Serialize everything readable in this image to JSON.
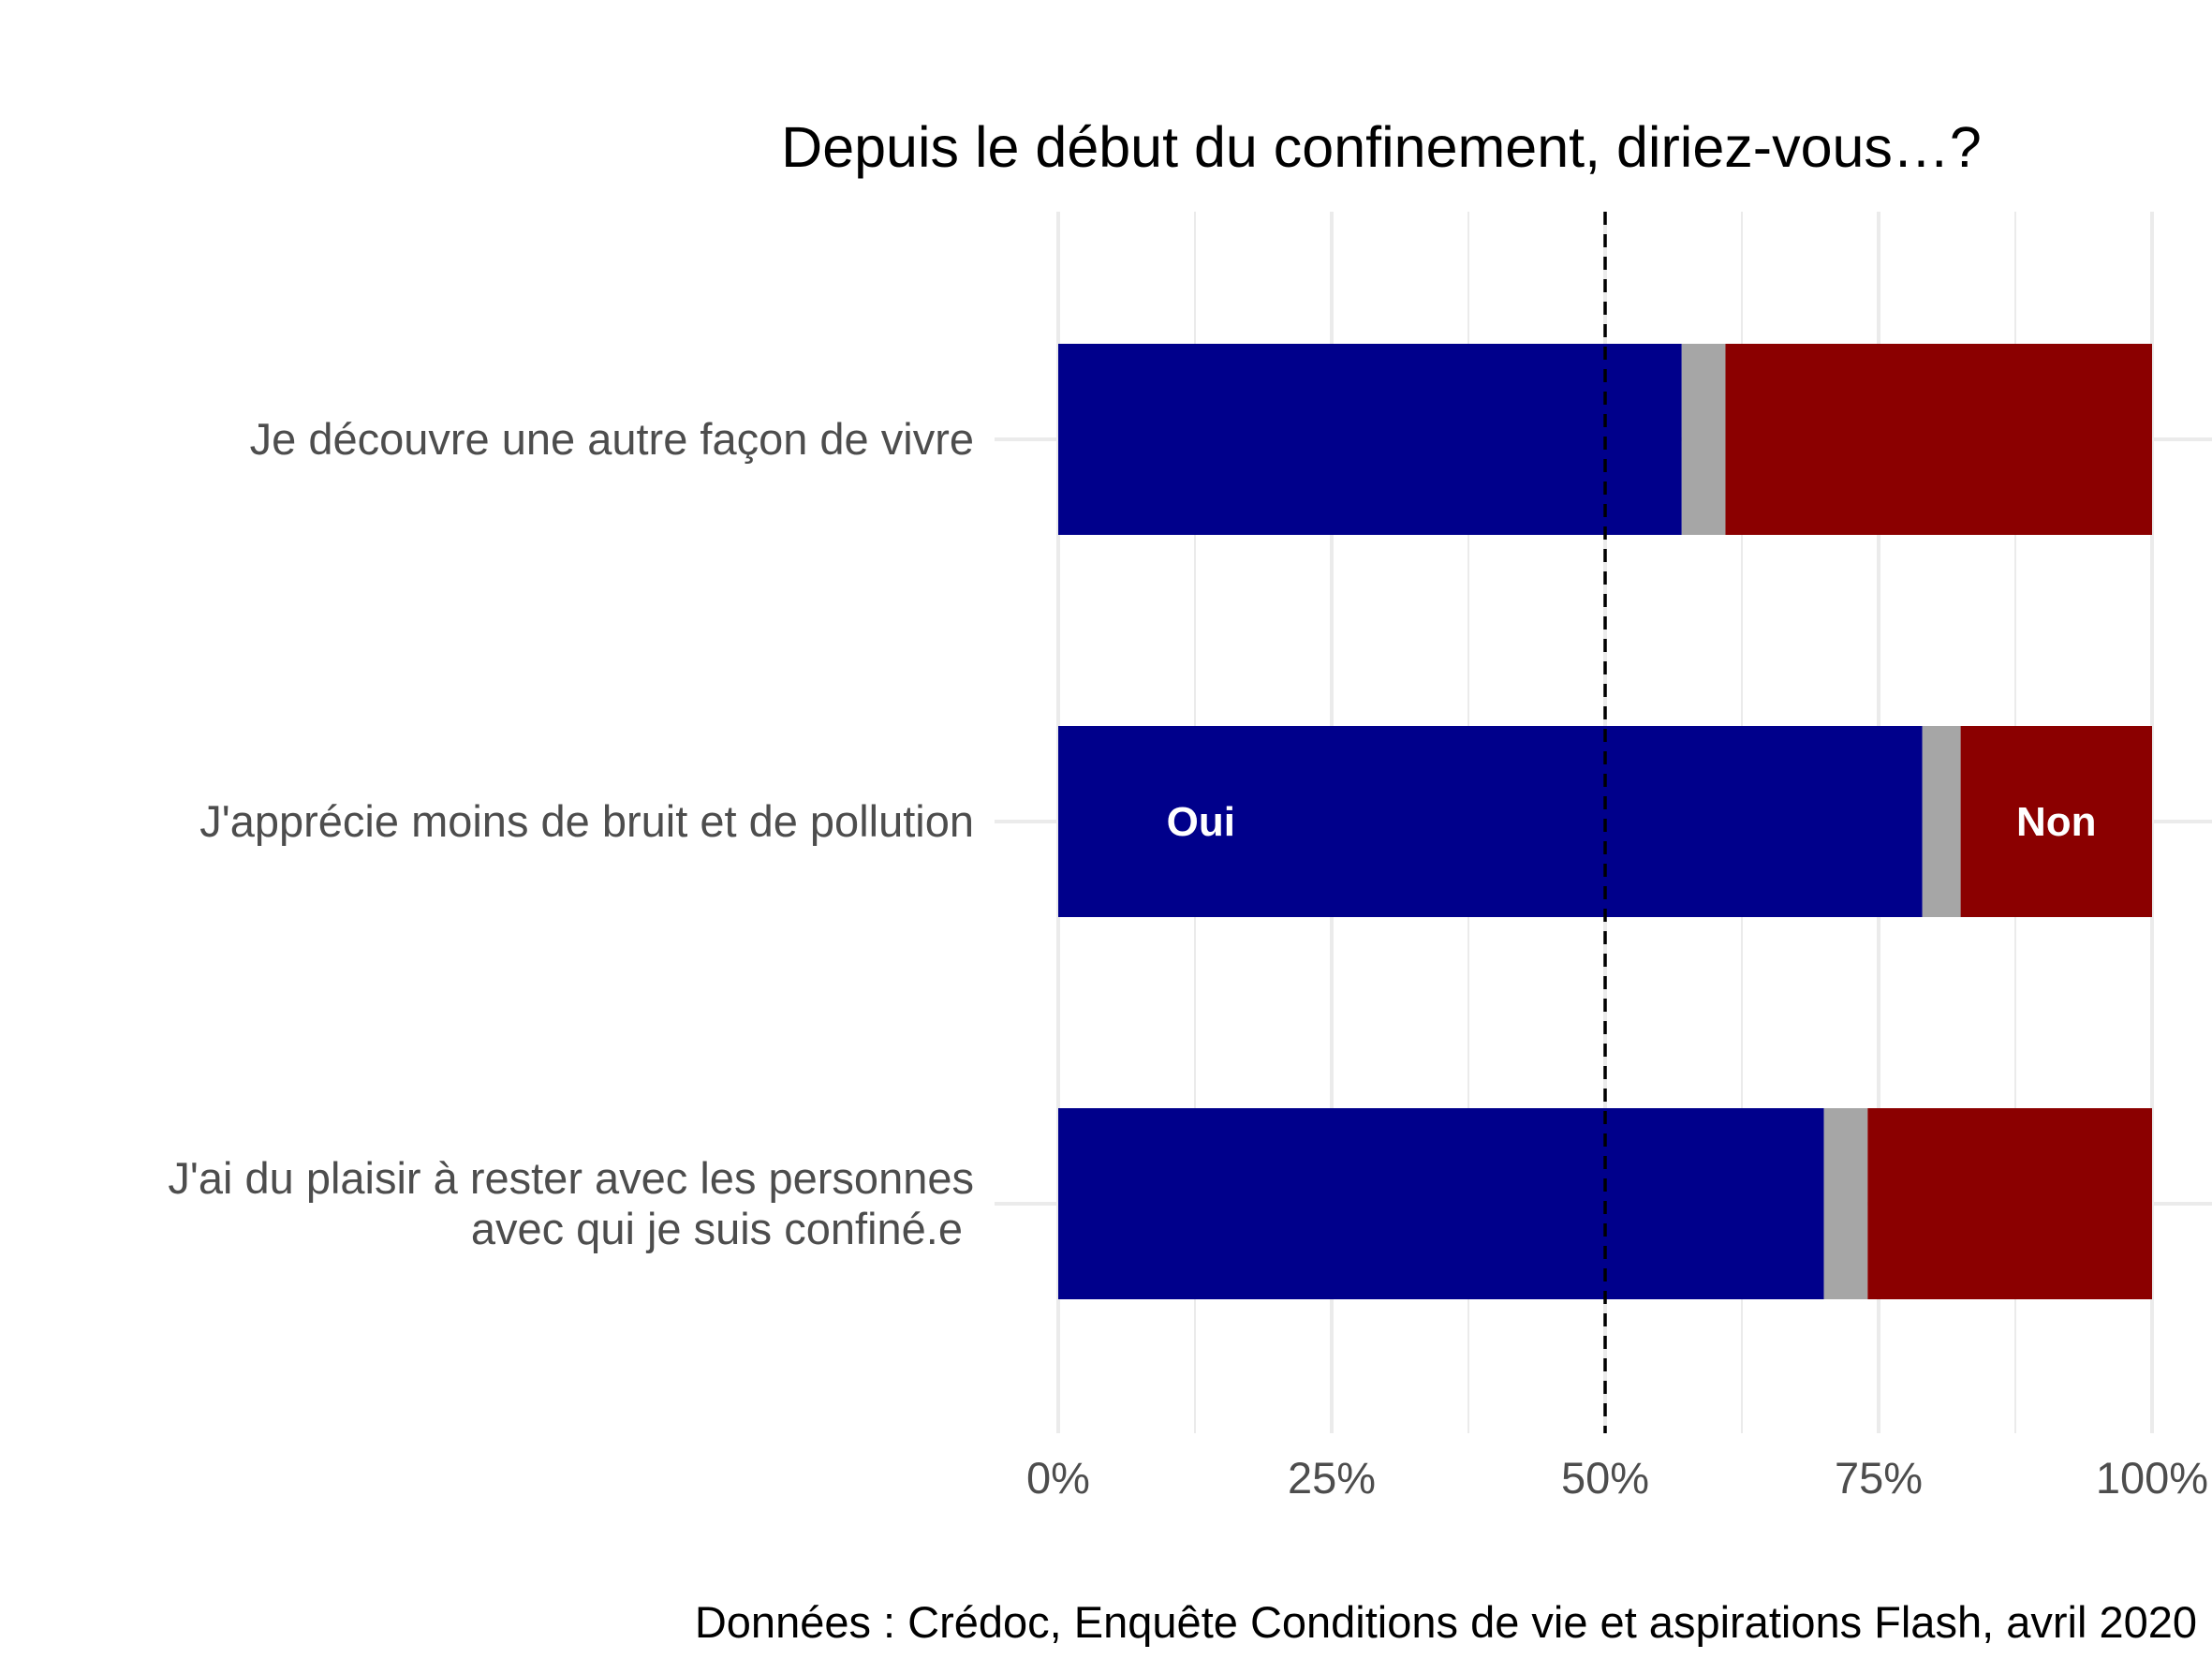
{
  "chart_data": {
    "type": "bar",
    "orientation": "horizontal",
    "stacked": true,
    "title": "Depuis le début du confinement, diriez-vous…?",
    "caption": "Données : Crédoc, Enquête Conditions de vie et aspirations Flash, avril 2020",
    "categories": [
      [
        "Je découvre une autre façon de vivre"
      ],
      [
        "J'apprécie moins de bruit et de pollution"
      ],
      [
        "J'ai du plaisir à rester avec les personnes",
        "avec qui je suis confiné.e"
      ]
    ],
    "series": [
      {
        "name": "Oui",
        "color": "#00008b",
        "values": [
          57,
          79,
          70
        ]
      },
      {
        "color": "#a6a6a6",
        "values": [
          4,
          3.5,
          4
        ]
      },
      {
        "name": "Non",
        "color": "#8b0000",
        "values": [
          39,
          17.5,
          26
        ]
      }
    ],
    "segment_labels": {
      "category_index": 1,
      "left": "Oui",
      "right": "Non"
    },
    "xlim": [
      0,
      100
    ],
    "x_ticks": [
      0,
      25,
      50,
      75,
      100
    ],
    "x_tick_labels": [
      "0%",
      "25%",
      "50%",
      "75%",
      "100%"
    ],
    "reference_line": {
      "x": 50,
      "style": "dashed",
      "color": "#000000"
    },
    "grid": true,
    "legend": "none"
  }
}
